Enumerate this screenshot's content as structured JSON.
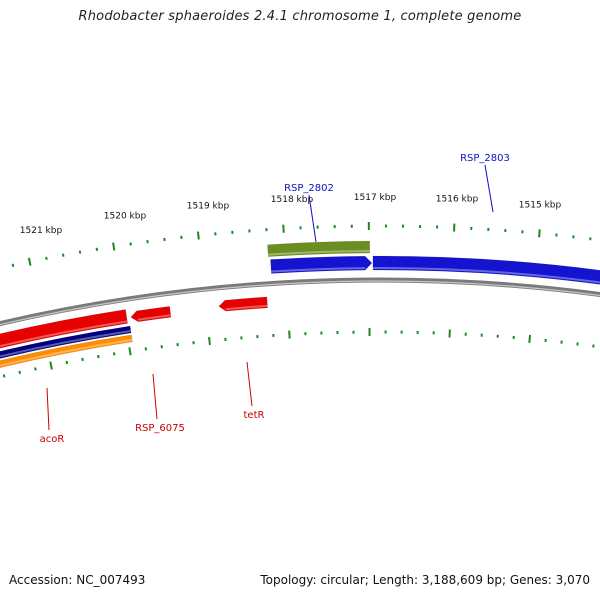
{
  "title": "Rhodobacter sphaeroides 2.4.1 chromosome 1, complete genome",
  "footer": {
    "accession": "Accession: NC_007493",
    "summary": "Topology: circular; Length: 3,188,609 bp; Genes: 3,070"
  },
  "colors": {
    "backbone": "#808080",
    "tick": "#1a8a1a",
    "forward_label": "#1010c0",
    "reverse_label": "#cc0000"
  },
  "scale": {
    "unit": "kbp",
    "labels": [
      "1521 kbp",
      "1520 kbp",
      "1519 kbp",
      "1518 kbp",
      "1517 kbp",
      "1516 kbp",
      "1515 kbp"
    ]
  },
  "genes": {
    "forward": [
      {
        "label": "RSP_2802",
        "color": "#1414d0",
        "strand": "+"
      },
      {
        "label": "RSP_2803",
        "color": "#1414d0",
        "strand": "+"
      },
      {
        "label": "",
        "color": "#6b8e23",
        "strand": "+"
      }
    ],
    "reverse": [
      {
        "label": "acoR",
        "color": "#e60000",
        "strand": "-"
      },
      {
        "label": "RSP_6075",
        "color": "#e60000",
        "strand": "-"
      },
      {
        "label": "tetR",
        "color": "#e60000",
        "strand": "-"
      },
      {
        "label": "",
        "color": "#000080",
        "strand": "-"
      },
      {
        "label": "",
        "color": "#ff8c00",
        "strand": "-"
      }
    ]
  }
}
